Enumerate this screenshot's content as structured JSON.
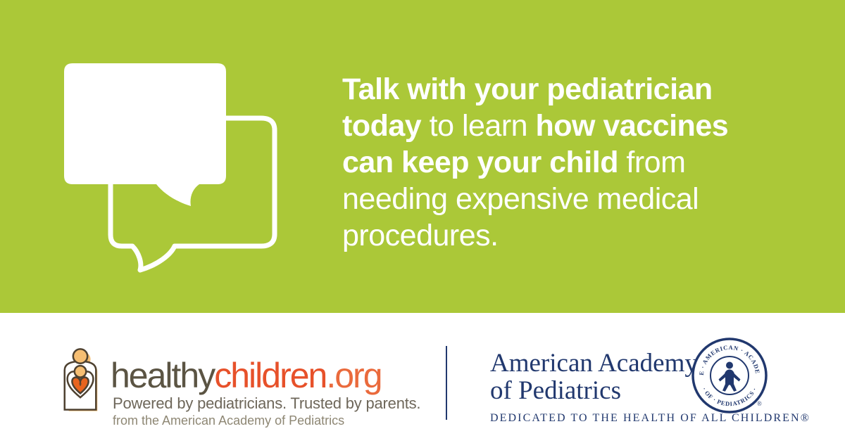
{
  "hero": {
    "headline": {
      "lines": [
        [
          {
            "text": "Talk with your pediatrician",
            "bold": true
          }
        ],
        [
          {
            "text": "today",
            "bold": true
          },
          {
            "text": " to learn ",
            "bold": false
          },
          {
            "text": "how vaccines",
            "bold": true
          }
        ],
        [
          {
            "text": "can keep your child",
            "bold": true
          },
          {
            "text": " from",
            "bold": false
          }
        ],
        [
          {
            "text": "needing expensive medical",
            "bold": false
          }
        ],
        [
          {
            "text": "procedures.",
            "bold": false
          }
        ]
      ]
    },
    "icon": "overlapping-speech-bubbles"
  },
  "footer": {
    "healthychildren": {
      "icon": "parent-embracing-child-heart",
      "wordmark": {
        "healthy": "healthy",
        "children": "children",
        "org": ".org"
      },
      "tagline": "Powered by pediatricians. Trusted by parents.",
      "subline": "from the American Academy of Pediatrics"
    },
    "aap": {
      "name_line1": "American Academy",
      "name_line2": "of Pediatrics",
      "motto": "DEDICATED TO THE HEALTH OF ALL CHILDREN®",
      "seal": {
        "top_text": "· THE · AMERICAN · ACADEMY ·",
        "bottom_text": "· OF · PEDIATRICS ·",
        "registered": "®"
      }
    }
  },
  "colors": {
    "background_green": "#abc838",
    "headline_white": "#ffffff",
    "aap_navy": "#21386e",
    "healthy_brown": "#5b5443",
    "children_orange": "#e7512a",
    "org_orange": "#ea6a3c",
    "tagline_gray": "#6e675a",
    "subline_gray": "#8e8774",
    "icon_light_orange": "#f6be72",
    "icon_heart_orange": "#e8641f",
    "icon_outline_brown": "#4e4130"
  }
}
